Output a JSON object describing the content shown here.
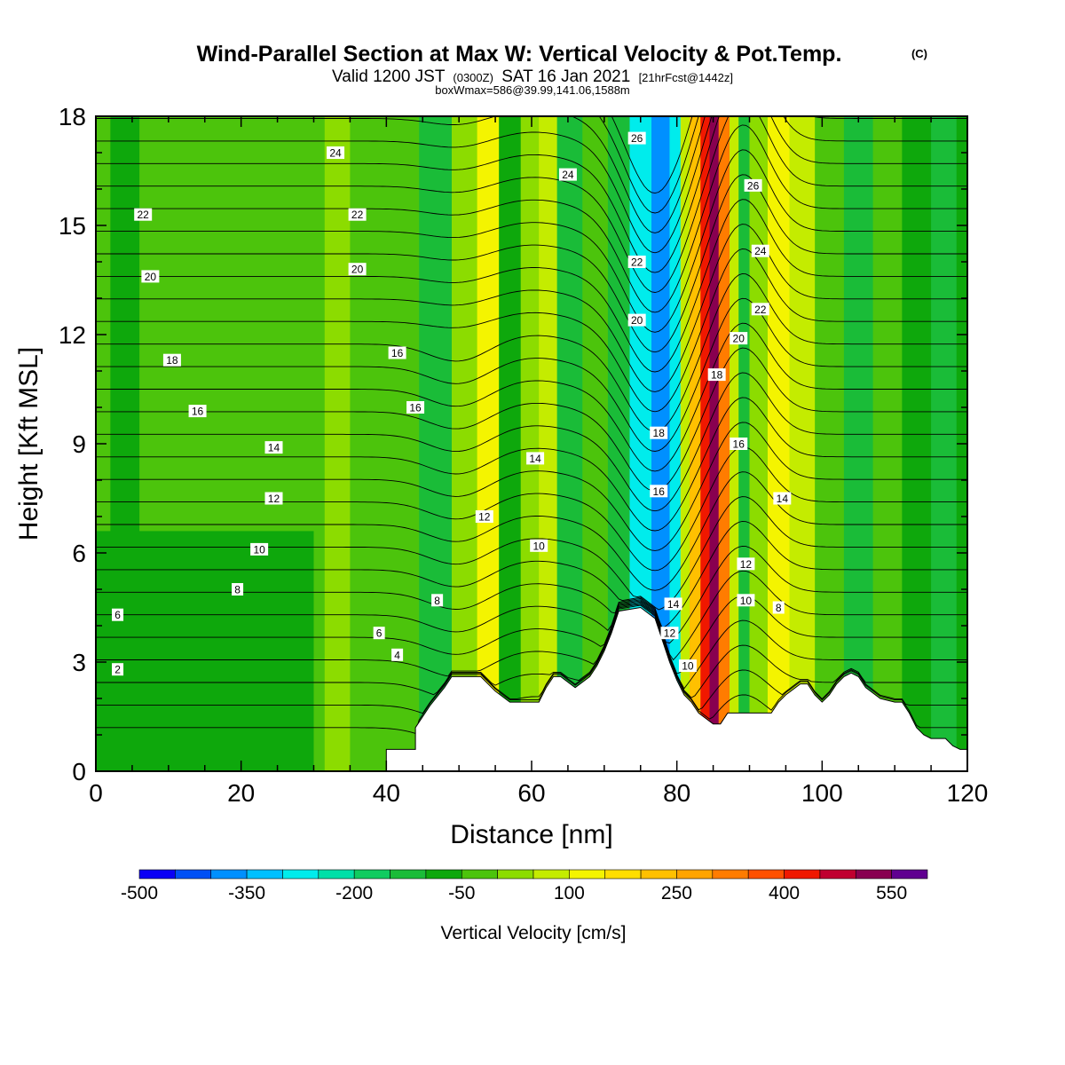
{
  "title": {
    "main": "Wind-Parallel Section at Max W: Vertical Velocity & Pot.Temp.",
    "mark": "(C)",
    "valid_prefix": "Valid 1200 JST",
    "utc": "(0300Z)",
    "valid_date": "SAT 16 Jan 2021",
    "forecast": "[21hrFcst@1442z]",
    "box": "boxWmax=586@39.99,141.06,1588m"
  },
  "chart_data": {
    "type": "heatmap",
    "xlabel": "Distance [nm]",
    "ylabel": "Height [Kft MSL]",
    "xlim": [
      0,
      120
    ],
    "ylim": [
      0,
      18
    ],
    "x_ticks": [
      "0",
      "20",
      "40",
      "60",
      "80",
      "100",
      "120"
    ],
    "y_ticks": [
      "0",
      "3",
      "6",
      "9",
      "12",
      "15",
      "18"
    ],
    "colorbar": {
      "label": "Vertical Velocity [cm/s]",
      "min": -500,
      "step": 50,
      "tick_labels": [
        "-500",
        "-350",
        "-200",
        "-50",
        "100",
        "250",
        "400",
        "550"
      ],
      "colors": [
        "#0a00f5",
        "#0050f5",
        "#0090ff",
        "#00c0ff",
        "#00ecec",
        "#00e0a8",
        "#10cc60",
        "#1abc38",
        "#0ea80c",
        "#4cc40c",
        "#8cdc00",
        "#c4ec00",
        "#f4f400",
        "#ffde00",
        "#ffc000",
        "#ffa400",
        "#ff7c00",
        "#ff5000",
        "#f01800",
        "#c00030",
        "#880050",
        "#600090"
      ]
    },
    "velocity_bands": [
      {
        "x": 0,
        "w": -50
      },
      {
        "x": 4,
        "w": -60
      },
      {
        "x": 8,
        "w": -50
      },
      {
        "x": 20,
        "w": -40
      },
      {
        "x": 30,
        "w": -30
      },
      {
        "x": 33,
        "w": 20
      },
      {
        "x": 37,
        "w": -50
      },
      {
        "x": 42,
        "w": -20
      },
      {
        "x": 47,
        "w": -130
      },
      {
        "x": 51,
        "w": 40
      },
      {
        "x": 54,
        "w": 100
      },
      {
        "x": 57,
        "w": -80
      },
      {
        "x": 60,
        "w": 20
      },
      {
        "x": 62,
        "w": 90
      },
      {
        "x": 65,
        "w": -120
      },
      {
        "x": 69,
        "w": -40
      },
      {
        "x": 72,
        "w": -120
      },
      {
        "x": 75,
        "w": -280
      },
      {
        "x": 78,
        "w": -400
      },
      {
        "x": 80,
        "w": -300
      },
      {
        "x": 81,
        "w": 80
      },
      {
        "x": 82.5,
        "w": 200
      },
      {
        "x": 84,
        "w": 400
      },
      {
        "x": 85,
        "w": 500
      },
      {
        "x": 86.5,
        "w": 300
      },
      {
        "x": 88,
        "w": 60
      },
      {
        "x": 89,
        "w": -140
      },
      {
        "x": 91,
        "w": 40
      },
      {
        "x": 94,
        "w": 130
      },
      {
        "x": 97,
        "w": 60
      },
      {
        "x": 101,
        "w": -50
      },
      {
        "x": 105,
        "w": -150
      },
      {
        "x": 109,
        "w": -40
      },
      {
        "x": 113,
        "w": -80
      },
      {
        "x": 117,
        "w": -120
      },
      {
        "x": 120,
        "w": -60
      }
    ],
    "terrain": [
      [
        0,
        0
      ],
      [
        40,
        0
      ],
      [
        40,
        0.6
      ],
      [
        44,
        0.6
      ],
      [
        44,
        1.2
      ],
      [
        46,
        1.8
      ],
      [
        48,
        2.3
      ],
      [
        49,
        2.6
      ],
      [
        53,
        2.6
      ],
      [
        55,
        2.2
      ],
      [
        57,
        1.9
      ],
      [
        58,
        1.9
      ],
      [
        61,
        1.9
      ],
      [
        62,
        2.3
      ],
      [
        63,
        2.6
      ],
      [
        64,
        2.6
      ],
      [
        66,
        2.3
      ],
      [
        68,
        2.6
      ],
      [
        69,
        2.9
      ],
      [
        70,
        3.3
      ],
      [
        71,
        3.8
      ],
      [
        72,
        4.4
      ],
      [
        75,
        4.5
      ],
      [
        77,
        4.2
      ],
      [
        78,
        3.6
      ],
      [
        79,
        3.0
      ],
      [
        80,
        2.5
      ],
      [
        81,
        2.1
      ],
      [
        82,
        1.9
      ],
      [
        83,
        1.6
      ],
      [
        85,
        1.3
      ],
      [
        86,
        1.3
      ],
      [
        87,
        1.6
      ],
      [
        93,
        1.6
      ],
      [
        94,
        1.9
      ],
      [
        95,
        2.1
      ],
      [
        97,
        2.4
      ],
      [
        98,
        2.4
      ],
      [
        99,
        2.1
      ],
      [
        100,
        1.9
      ],
      [
        101,
        2.1
      ],
      [
        102,
        2.4
      ],
      [
        103,
        2.6
      ],
      [
        104,
        2.7
      ],
      [
        105,
        2.6
      ],
      [
        106,
        2.3
      ],
      [
        108,
        2.0
      ],
      [
        110,
        1.9
      ],
      [
        111,
        1.9
      ],
      [
        112,
        1.6
      ],
      [
        113,
        1.2
      ],
      [
        114,
        1.0
      ],
      [
        115,
        0.9
      ],
      [
        117,
        0.9
      ],
      [
        118,
        0.7
      ],
      [
        119,
        0.6
      ],
      [
        120,
        0.6
      ],
      [
        120,
        0
      ]
    ],
    "theta_levels": [
      2,
      4,
      6,
      8,
      10,
      12,
      14,
      16,
      18,
      20,
      22,
      24,
      26
    ],
    "theta_labels": [
      {
        "t": "2",
        "x": 3,
        "y": 2.8
      },
      {
        "t": "6",
        "x": 3,
        "y": 4.3
      },
      {
        "t": "8",
        "x": 19.5,
        "y": 5
      },
      {
        "t": "10",
        "x": 22.5,
        "y": 6.1
      },
      {
        "t": "12",
        "x": 24.5,
        "y": 7.5
      },
      {
        "t": "14",
        "x": 24.5,
        "y": 8.9
      },
      {
        "t": "16",
        "x": 14,
        "y": 9.9
      },
      {
        "t": "18",
        "x": 10.5,
        "y": 11.3
      },
      {
        "t": "20",
        "x": 7.5,
        "y": 13.6
      },
      {
        "t": "22",
        "x": 6.5,
        "y": 15.3
      },
      {
        "t": "24",
        "x": 33,
        "y": 17
      },
      {
        "t": "22",
        "x": 36,
        "y": 15.3
      },
      {
        "t": "20",
        "x": 36,
        "y": 13.8
      },
      {
        "t": "16",
        "x": 41.5,
        "y": 11.5
      },
      {
        "t": "16",
        "x": 44,
        "y": 10
      },
      {
        "t": "4",
        "x": 41.5,
        "y": 3.2
      },
      {
        "t": "6",
        "x": 39,
        "y": 3.8
      },
      {
        "t": "8",
        "x": 47,
        "y": 4.7
      },
      {
        "t": "12",
        "x": 53.5,
        "y": 7
      },
      {
        "t": "10",
        "x": 61,
        "y": 6.2
      },
      {
        "t": "14",
        "x": 60.5,
        "y": 8.6
      },
      {
        "t": "24",
        "x": 65,
        "y": 16.4
      },
      {
        "t": "26",
        "x": 74.5,
        "y": 17.4
      },
      {
        "t": "22",
        "x": 74.5,
        "y": 14
      },
      {
        "t": "20",
        "x": 74.5,
        "y": 12.4
      },
      {
        "t": "18",
        "x": 77.5,
        "y": 9.3
      },
      {
        "t": "16",
        "x": 77.5,
        "y": 7.7
      },
      {
        "t": "14",
        "x": 79.5,
        "y": 4.6
      },
      {
        "t": "12",
        "x": 79,
        "y": 3.8
      },
      {
        "t": "10",
        "x": 81.5,
        "y": 2.9
      },
      {
        "t": "26",
        "x": 90.5,
        "y": 16.1
      },
      {
        "t": "24",
        "x": 91.5,
        "y": 14.3
      },
      {
        "t": "22",
        "x": 91.5,
        "y": 12.7
      },
      {
        "t": "20",
        "x": 88.5,
        "y": 11.9
      },
      {
        "t": "18",
        "x": 85.5,
        "y": 10.9
      },
      {
        "t": "16",
        "x": 88.5,
        "y": 9
      },
      {
        "t": "14",
        "x": 94.5,
        "y": 7.5
      },
      {
        "t": "12",
        "x": 89.5,
        "y": 5.7
      },
      {
        "t": "10",
        "x": 89.5,
        "y": 4.7
      },
      {
        "t": "8",
        "x": 94,
        "y": 4.5
      }
    ]
  }
}
